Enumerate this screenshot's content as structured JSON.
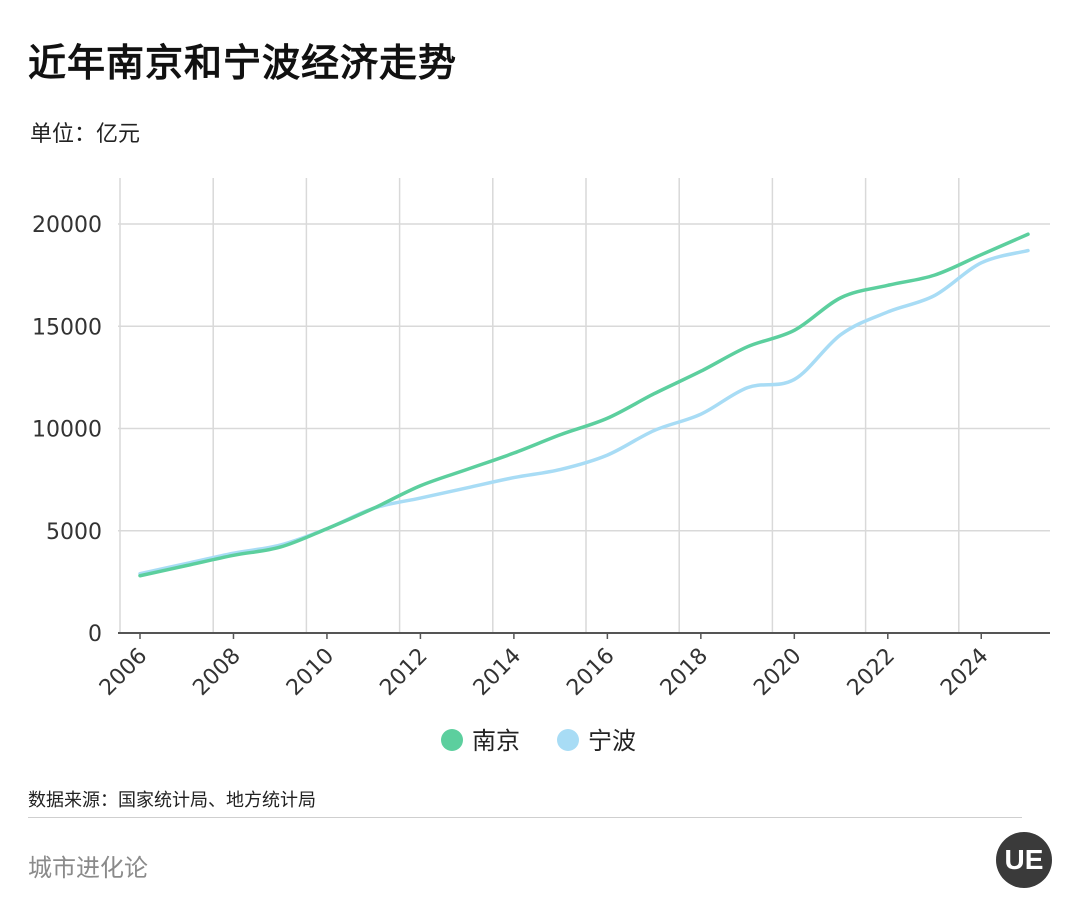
{
  "header": {
    "title": "近年南京和宁波经济走势",
    "unit": "单位：亿元"
  },
  "footer": {
    "source": "数据来源：国家统计局、地方统计局",
    "brand": "城市进化论",
    "logo_text": "UE"
  },
  "colors": {
    "nanjing": "#5ccf9e",
    "ningbo": "#a8dcf5",
    "grid": "#d9d9d9",
    "axis": "#555555"
  },
  "chart_data": {
    "type": "line",
    "x": [
      2006,
      2007,
      2008,
      2009,
      2010,
      2011,
      2012,
      2013,
      2014,
      2015,
      2016,
      2017,
      2018,
      2019,
      2020,
      2021,
      2022,
      2023,
      2024,
      2025
    ],
    "x_tick_labels": [
      "2006",
      "2008",
      "2010",
      "2012",
      "2014",
      "2016",
      "2018",
      "2020",
      "2022",
      "2024"
    ],
    "y_tick_labels": [
      "0",
      "5000",
      "10000",
      "15000",
      "20000"
    ],
    "ylim": [
      0,
      20000
    ],
    "series": [
      {
        "name": "南京",
        "color": "#5ccf9e",
        "values": [
          2800,
          3300,
          3800,
          4200,
          5100,
          6100,
          7200,
          8000,
          8800,
          9700,
          10500,
          11700,
          12800,
          14000,
          14800,
          16400,
          17000,
          17500,
          18500,
          19500
        ]
      },
      {
        "name": "宁波",
        "color": "#a8dcf5",
        "values": [
          2900,
          3400,
          3900,
          4300,
          5100,
          6100,
          6600,
          7100,
          7600,
          8000,
          8700,
          9900,
          10700,
          12000,
          12400,
          14600,
          15700,
          16500,
          18100,
          18700
        ]
      }
    ],
    "legend_position": "bottom-center",
    "grid": true
  }
}
